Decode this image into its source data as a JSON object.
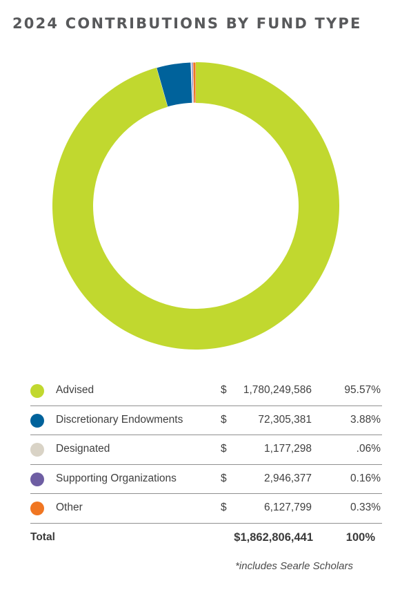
{
  "title": "2024 CONTRIBUTIONS BY FUND TYPE",
  "chart_data": {
    "type": "pie",
    "title": "2024 CONTRIBUTIONS BY FUND TYPE",
    "categories": [
      "Advised",
      "Discretionary Endowments",
      "Designated",
      "Supporting Organizations",
      "Other"
    ],
    "values": [
      1780249586,
      72305381,
      1177298,
      2946377,
      6127799
    ],
    "colors": [
      "#c1d82f",
      "#00629b",
      "#d9d3c6",
      "#6e5ea3",
      "#f07622"
    ],
    "legend": "bottom"
  },
  "table": {
    "currency": "$",
    "rows": [
      {
        "label": "Advised",
        "amount": "1,780,249,586",
        "percent": "95.57%",
        "color": "#c1d82f"
      },
      {
        "label": "Discretionary Endowments",
        "amount": "72,305,381",
        "percent": "3.88%",
        "color": "#00629b"
      },
      {
        "label": "Designated",
        "amount": "1,177,298",
        "percent": ".06%",
        "color": "#d9d3c6"
      },
      {
        "label": "Supporting Organizations",
        "amount": "2,946,377",
        "percent": "0.16%",
        "color": "#6e5ea3"
      },
      {
        "label": "Other",
        "amount": "6,127,799",
        "percent": "0.33%",
        "color": "#f07622"
      }
    ],
    "total": {
      "label": "Total",
      "amount": "$1,862,806,441",
      "percent": "100%"
    }
  },
  "footnote": "*includes Searle Scholars"
}
